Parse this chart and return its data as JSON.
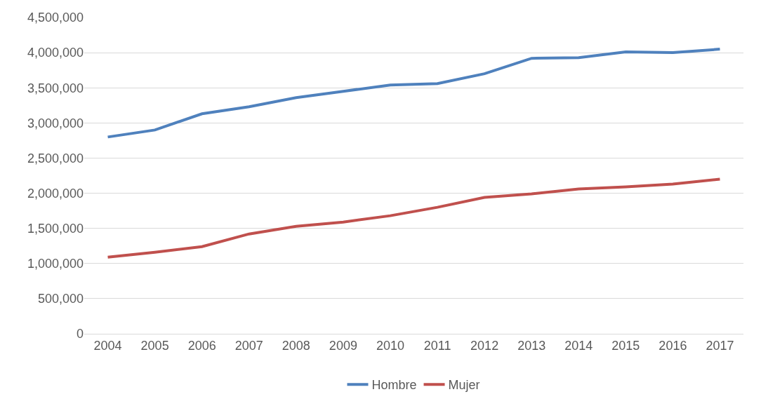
{
  "chart_data": {
    "type": "line",
    "categories": [
      "2004",
      "2005",
      "2006",
      "2007",
      "2008",
      "2009",
      "2010",
      "2011",
      "2012",
      "2013",
      "2014",
      "2015",
      "2016",
      "2017"
    ],
    "series": [
      {
        "name": "Hombre",
        "color": "#4f81bd",
        "values": [
          2800000,
          2900000,
          3130000,
          3230000,
          3360000,
          3450000,
          3540000,
          3560000,
          3700000,
          3920000,
          3930000,
          4010000,
          4000000,
          4050000
        ]
      },
      {
        "name": "Mujer",
        "color": "#c0504d",
        "values": [
          1090000,
          1160000,
          1240000,
          1420000,
          1530000,
          1590000,
          1680000,
          1800000,
          1940000,
          1990000,
          2060000,
          2090000,
          2130000,
          2200000
        ]
      }
    ],
    "ylim": [
      0,
      4500000
    ],
    "yticks": [
      {
        "value": 0,
        "label": "0"
      },
      {
        "value": 500000,
        "label": "500,000"
      },
      {
        "value": 1000000,
        "label": "1,000,000"
      },
      {
        "value": 1500000,
        "label": "1,500,000"
      },
      {
        "value": 2000000,
        "label": "2,000,000"
      },
      {
        "value": 2500000,
        "label": "2,500,000"
      },
      {
        "value": 3000000,
        "label": "3,000,000"
      },
      {
        "value": 3500000,
        "label": "3,500,000"
      },
      {
        "value": 4000000,
        "label": "4,000,000"
      },
      {
        "value": 4500000,
        "label": "4,500,000"
      }
    ],
    "grid": "y",
    "legend": "bottom",
    "marker": "none",
    "line_style": "solid"
  }
}
